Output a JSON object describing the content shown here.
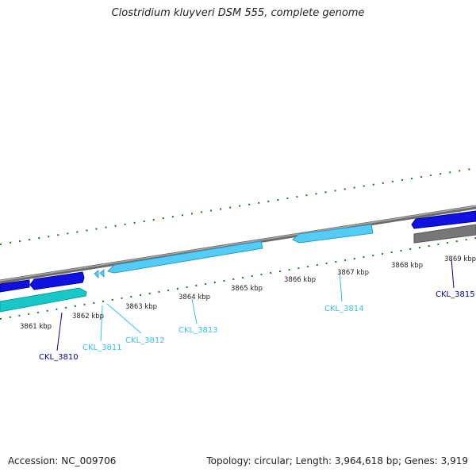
{
  "title": "Clostridium kluyveri DSM 555, complete genome",
  "footer": {
    "accession": "Accession: NC_009706",
    "summary": "Topology: circular; Length: 3,964,618 bp; Genes: 3,919"
  },
  "scale_labels": [
    "3861 kbp",
    "3862 kbp",
    "3863 kbp",
    "3864 kbp",
    "3865 kbp",
    "3866 kbp",
    "3867 kbp",
    "3868 kbp",
    "3869 kbp"
  ],
  "genes": [
    {
      "label": "CKL_3810",
      "color": "#0000aa"
    },
    {
      "label": "CKL_3811",
      "color": "#33c3e6"
    },
    {
      "label": "CKL_3812",
      "color": "#33c3e6"
    },
    {
      "label": "CKL_3813",
      "color": "#33c3e6"
    },
    {
      "label": "CKL_3814",
      "color": "#33c3e6"
    },
    {
      "label": "CKL_3815",
      "color": "#0000aa"
    }
  ],
  "colors": {
    "backbone": "#8a8a8a",
    "ticks": "#1a7a1a",
    "gene_blue": "#1010e0",
    "gene_lightblue": "#55ccf5",
    "gene_cyan": "#18c8c8",
    "gene_gray": "#777777"
  }
}
